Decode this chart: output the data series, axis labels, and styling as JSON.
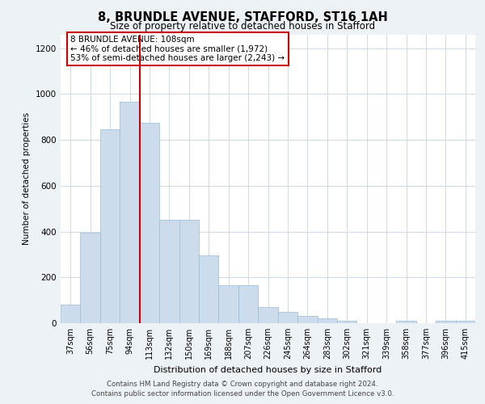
{
  "title_line1": "8, BRUNDLE AVENUE, STAFFORD, ST16 1AH",
  "title_line2": "Size of property relative to detached houses in Stafford",
  "xlabel": "Distribution of detached houses by size in Stafford",
  "ylabel": "Number of detached properties",
  "categories": [
    "37sqm",
    "56sqm",
    "75sqm",
    "94sqm",
    "113sqm",
    "132sqm",
    "150sqm",
    "169sqm",
    "188sqm",
    "207sqm",
    "226sqm",
    "245sqm",
    "264sqm",
    "283sqm",
    "302sqm",
    "321sqm",
    "339sqm",
    "358sqm",
    "377sqm",
    "396sqm",
    "415sqm"
  ],
  "values": [
    80,
    395,
    845,
    965,
    875,
    450,
    450,
    295,
    165,
    165,
    70,
    50,
    30,
    20,
    10,
    0,
    0,
    10,
    0,
    10,
    10
  ],
  "bar_color": "#ccdcec",
  "bar_edge_color": "#9bbbd4",
  "vline_x": 3.5,
  "vline_color": "#cc0000",
  "annotation_text": "8 BRUNDLE AVENUE: 108sqm\n← 46% of detached houses are smaller (1,972)\n53% of semi-detached houses are larger (2,243) →",
  "annotation_box_facecolor": "#ffffff",
  "annotation_box_edgecolor": "#cc0000",
  "ylim_max": 1260,
  "yticks": [
    0,
    200,
    400,
    600,
    800,
    1000,
    1200
  ],
  "footer_line1": "Contains HM Land Registry data © Crown copyright and database right 2024.",
  "footer_line2": "Contains public sector information licensed under the Open Government Licence v3.0.",
  "fig_bg_color": "#edf2f7",
  "plot_bg_color": "#ffffff",
  "grid_color": "#d0d8e4"
}
